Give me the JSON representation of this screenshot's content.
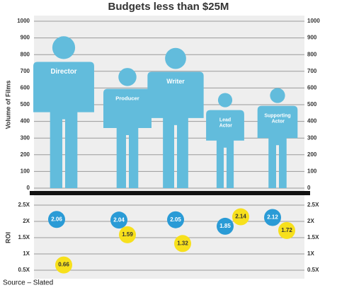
{
  "title": "Budgets less than $25M",
  "source": "Source – Slated",
  "chart_data": [
    {
      "type": "pictogram",
      "y_label": "Volume of Films",
      "categories": [
        "Director",
        "Producer",
        "Writer",
        "Lead Actor",
        "Supporting Actor"
      ],
      "values": [
        910,
        720,
        840,
        570,
        600
      ],
      "color": "#62bcdc",
      "ylim": [
        0,
        1000
      ],
      "yticks": [
        0,
        100,
        200,
        300,
        400,
        500,
        600,
        700,
        800,
        900,
        1000
      ],
      "grid": true
    },
    {
      "type": "dots",
      "y_label": "ROI",
      "series": [
        {
          "color": "#2a9bd6",
          "values": [
            2.06,
            2.04,
            2.05,
            1.85,
            2.12
          ]
        },
        {
          "color": "#f7e01c",
          "values": [
            0.66,
            1.59,
            1.32,
            2.14,
            1.72
          ]
        }
      ],
      "ylim": [
        0.5,
        2.5
      ],
      "yticks": [
        {
          "value": 2.5,
          "label": "2.5X"
        },
        {
          "value": 2,
          "label": "2X"
        },
        {
          "value": 1.5,
          "label": "1.5X"
        },
        {
          "value": 1,
          "label": "1X"
        },
        {
          "value": 0.5,
          "label": "0.5X"
        }
      ],
      "grid": true
    }
  ]
}
